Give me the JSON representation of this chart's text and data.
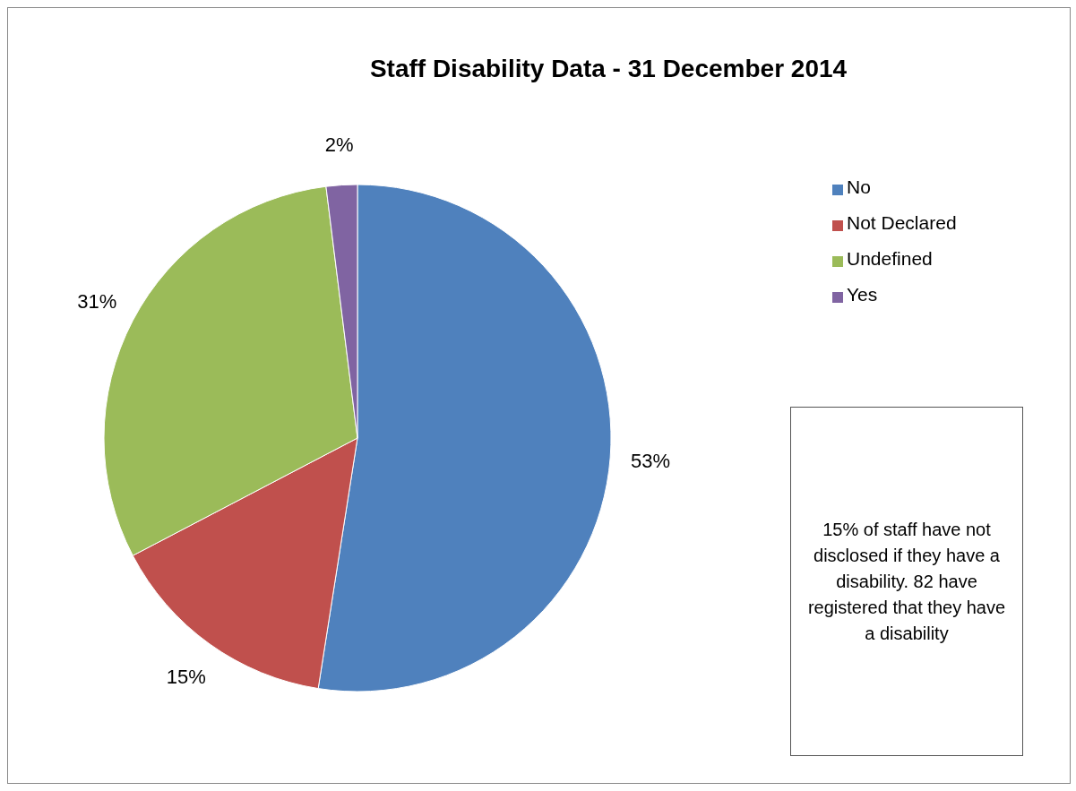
{
  "chart_data": {
    "type": "pie",
    "title": "Staff Disability Data - 31 December 2014",
    "categories": [
      "No",
      "Not Declared",
      "Undefined",
      "Yes"
    ],
    "values": [
      53,
      15,
      31,
      2
    ],
    "value_labels": [
      "53%",
      "15%",
      "31%",
      "2%"
    ],
    "colors": [
      "#4f81bd",
      "#c0504d",
      "#9bbb59",
      "#8064a2"
    ],
    "legend": "right",
    "annotations": [
      "15% of staff have not disclosed if they have a disability. 82 have registered that they have a disability"
    ]
  }
}
